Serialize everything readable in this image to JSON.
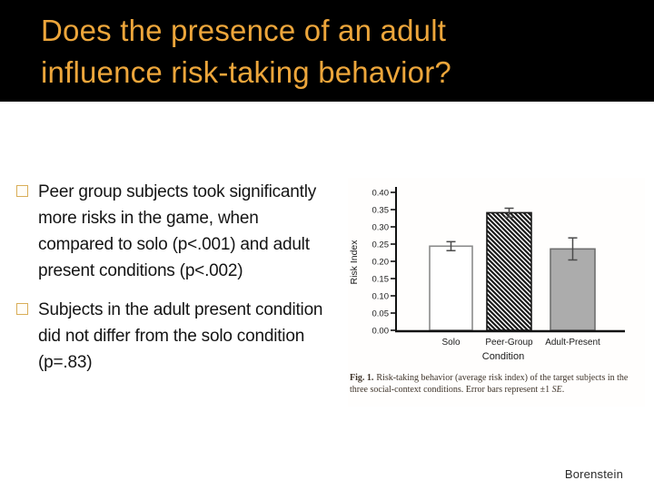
{
  "slide": {
    "title_lines": [
      "Does the presence of an adult",
      "influence risk-taking behavior?"
    ],
    "bullets": [
      {
        "lines": [
          "Peer group subjects took significantly",
          "more risks in the game, when",
          "compared to solo (p<.001) and adult",
          "present conditions (p<.002)"
        ]
      },
      {
        "lines": [
          "Subjects in the adult present condition",
          "did not differ from the solo condition",
          "(p=.83)"
        ]
      }
    ],
    "attribution": "Borenstein"
  },
  "figure": {
    "caption_label": "Fig. 1.",
    "caption_text": "Risk-taking behavior (average risk index) of the target subjects in the three social-context conditions. Error bars represent ±1 ",
    "caption_italic": "SE",
    "caption_end": "."
  },
  "colors": {
    "header_bg": "#000000",
    "title_text": "#EDA63B",
    "bullet_square_border": "#D9AE58",
    "body_text": "#141414",
    "bar_white_fill": "#ffffff",
    "bar_white_stroke": "#8a8a8a",
    "bar_hatch_stroke": "#1a1a1a",
    "bar_gray_fill": "#ACACAC",
    "bar_gray_stroke": "#6f6f6f",
    "error_bar": "#4a4a4a",
    "axis": "#111111"
  },
  "chart_data": {
    "type": "bar",
    "title": "",
    "categories": [
      "Solo",
      "Peer-Group",
      "Adult-Present"
    ],
    "values": [
      0.244,
      0.341,
      0.236
    ],
    "errors": [
      0.013,
      0.013,
      0.032
    ],
    "bar_styles": [
      "white",
      "hatched",
      "gray"
    ],
    "xlabel": "Condition",
    "ylabel": "Risk Index",
    "ylim": [
      0,
      0.4
    ],
    "ytick_step": 0.05,
    "yticks": [
      "0.00",
      "0.05",
      "0.10",
      "0.15",
      "0.20",
      "0.25",
      "0.30",
      "0.35",
      "0.40"
    ],
    "grid": false,
    "legend": "none",
    "note": "Error bars represent +/-1 SE"
  }
}
